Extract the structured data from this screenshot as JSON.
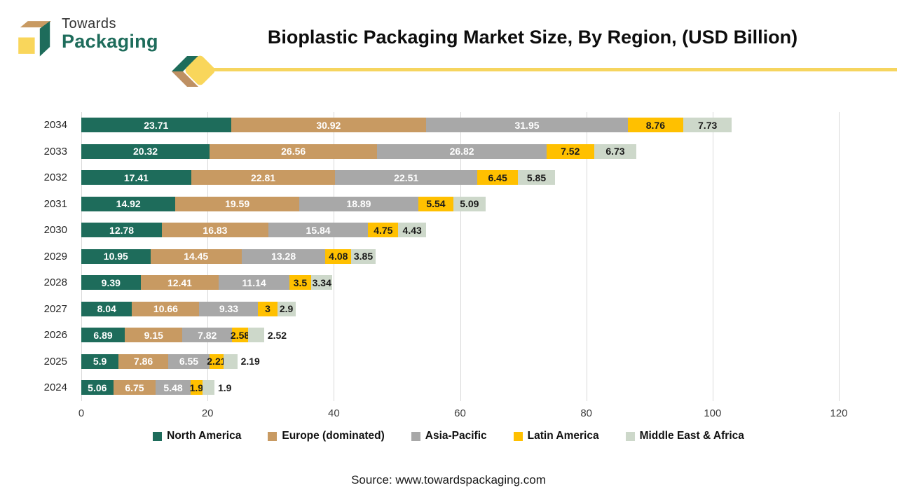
{
  "header": {
    "logo_line1": "Towards",
    "logo_line2": "Packaging",
    "title": "Bioplastic Packaging Market Size, By Region, (USD Billion)"
  },
  "chart_data": {
    "type": "bar",
    "orientation": "horizontal",
    "stacked": true,
    "title": "Bioplastic Packaging Market Size, By Region, (USD Billion)",
    "categories": [
      "2034",
      "2033",
      "2032",
      "2031",
      "2030",
      "2029",
      "2028",
      "2027",
      "2026",
      "2025",
      "2024"
    ],
    "series": [
      {
        "name": "North America",
        "color": "#1E6C5B",
        "label_color": "#ffffff",
        "values": [
          23.71,
          20.32,
          17.41,
          14.92,
          12.78,
          10.95,
          9.39,
          8.04,
          6.89,
          5.9,
          5.06
        ]
      },
      {
        "name": "Europe (dominated)",
        "color": "#C89A62",
        "label_color": "#ffffff",
        "values": [
          30.92,
          26.56,
          22.81,
          19.59,
          16.83,
          14.45,
          12.41,
          10.66,
          9.15,
          7.86,
          6.75
        ]
      },
      {
        "name": "Asia-Pacific",
        "color": "#A8A8A8",
        "label_color": "#ffffff",
        "values": [
          31.95,
          26.82,
          22.51,
          18.89,
          15.84,
          13.28,
          11.14,
          9.33,
          7.82,
          6.55,
          5.48
        ]
      },
      {
        "name": "Latin America",
        "color": "#FFC000",
        "label_color": "#1a1a1a",
        "values": [
          8.76,
          7.52,
          6.45,
          5.54,
          4.75,
          4.08,
          3.5,
          3,
          2.58,
          2.21,
          1.9
        ]
      },
      {
        "name": "Middle East & Africa",
        "color": "#CDD8CA",
        "label_color": "#1a1a1a",
        "values": [
          7.73,
          6.73,
          5.85,
          5.09,
          4.43,
          3.85,
          3.34,
          2.9,
          2.52,
          2.19,
          1.9
        ]
      }
    ],
    "x_ticks": [
      0,
      20,
      40,
      60,
      80,
      100,
      120
    ],
    "xlim": [
      0,
      120
    ],
    "grid": true,
    "legend_position": "bottom"
  },
  "footer": {
    "source": "Source: www.towardspackaging.com"
  },
  "colors": {
    "brand_teal": "#1E6C5B",
    "brand_tan": "#C89A62",
    "brand_yellow": "#F9D65B",
    "divider_line": "#F6D55F",
    "gridline": "#D9D9D9"
  }
}
